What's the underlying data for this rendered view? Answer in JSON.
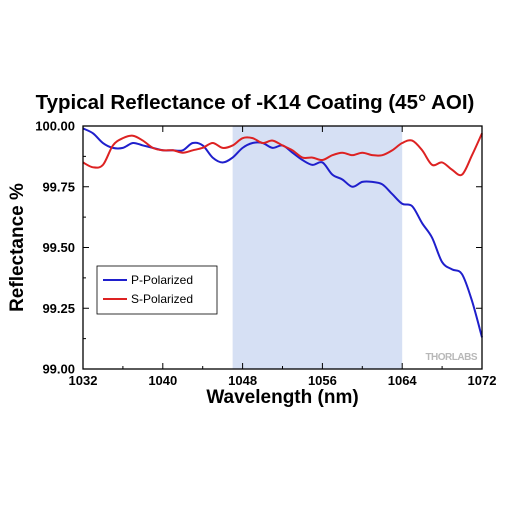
{
  "chart_data": {
    "type": "line",
    "title": "Typical Reflectance of -K14 Coating (45° AOI)",
    "xlabel": "Wavelength (nm)",
    "ylabel": "Reflectance %",
    "xlim": [
      1032,
      1072
    ],
    "ylim": [
      99.0,
      100.0
    ],
    "xticks": [
      "1032",
      "1040",
      "1048",
      "1056",
      "1064",
      "1072"
    ],
    "yticks": [
      "99.00",
      "99.25",
      "99.50",
      "99.75",
      "100.00"
    ],
    "x_tick_values": [
      1032,
      1040,
      1048,
      1056,
      1064,
      1072
    ],
    "y_tick_values": [
      99.0,
      99.25,
      99.5,
      99.75,
      100.0
    ],
    "shaded_region": {
      "x_start": 1047,
      "x_end": 1064,
      "color": "#d6e0f4"
    },
    "grid": false,
    "legend_position": "lower-left",
    "watermark": "THORLABS",
    "series": [
      {
        "name": "P-Polarized",
        "color": "#1f1fcc",
        "x": [
          1032,
          1033,
          1034,
          1035,
          1036,
          1037,
          1038,
          1039,
          1040,
          1041,
          1042,
          1043,
          1044,
          1045,
          1046,
          1047,
          1048,
          1049,
          1050,
          1051,
          1052,
          1053,
          1054,
          1055,
          1056,
          1057,
          1058,
          1059,
          1060,
          1061,
          1062,
          1063,
          1064,
          1065,
          1066,
          1067,
          1068,
          1069,
          1070,
          1071,
          1072
        ],
        "y": [
          99.99,
          99.97,
          99.93,
          99.91,
          99.91,
          99.93,
          99.92,
          99.91,
          99.9,
          99.9,
          99.9,
          99.93,
          99.92,
          99.87,
          99.85,
          99.87,
          99.91,
          99.93,
          99.93,
          99.91,
          99.92,
          99.89,
          99.86,
          99.84,
          99.85,
          99.8,
          99.78,
          99.75,
          99.77,
          99.77,
          99.76,
          99.72,
          99.68,
          99.67,
          99.6,
          99.54,
          99.44,
          99.41,
          99.39,
          99.28,
          99.13
        ]
      },
      {
        "name": "S-Polarized",
        "color": "#dd2222",
        "x": [
          1032,
          1033,
          1034,
          1035,
          1036,
          1037,
          1038,
          1039,
          1040,
          1041,
          1042,
          1043,
          1044,
          1045,
          1046,
          1047,
          1048,
          1049,
          1050,
          1051,
          1052,
          1053,
          1054,
          1055,
          1056,
          1057,
          1058,
          1059,
          1060,
          1061,
          1062,
          1063,
          1064,
          1065,
          1066,
          1067,
          1068,
          1069,
          1070,
          1071,
          1072
        ],
        "y": [
          99.85,
          99.83,
          99.84,
          99.92,
          99.95,
          99.96,
          99.94,
          99.91,
          99.9,
          99.9,
          99.89,
          99.9,
          99.91,
          99.93,
          99.91,
          99.92,
          99.95,
          99.95,
          99.93,
          99.94,
          99.92,
          99.9,
          99.87,
          99.87,
          99.86,
          99.88,
          99.89,
          99.88,
          99.89,
          99.88,
          99.88,
          99.9,
          99.93,
          99.94,
          99.9,
          99.84,
          99.85,
          99.82,
          99.8,
          99.88,
          99.97
        ]
      }
    ]
  }
}
